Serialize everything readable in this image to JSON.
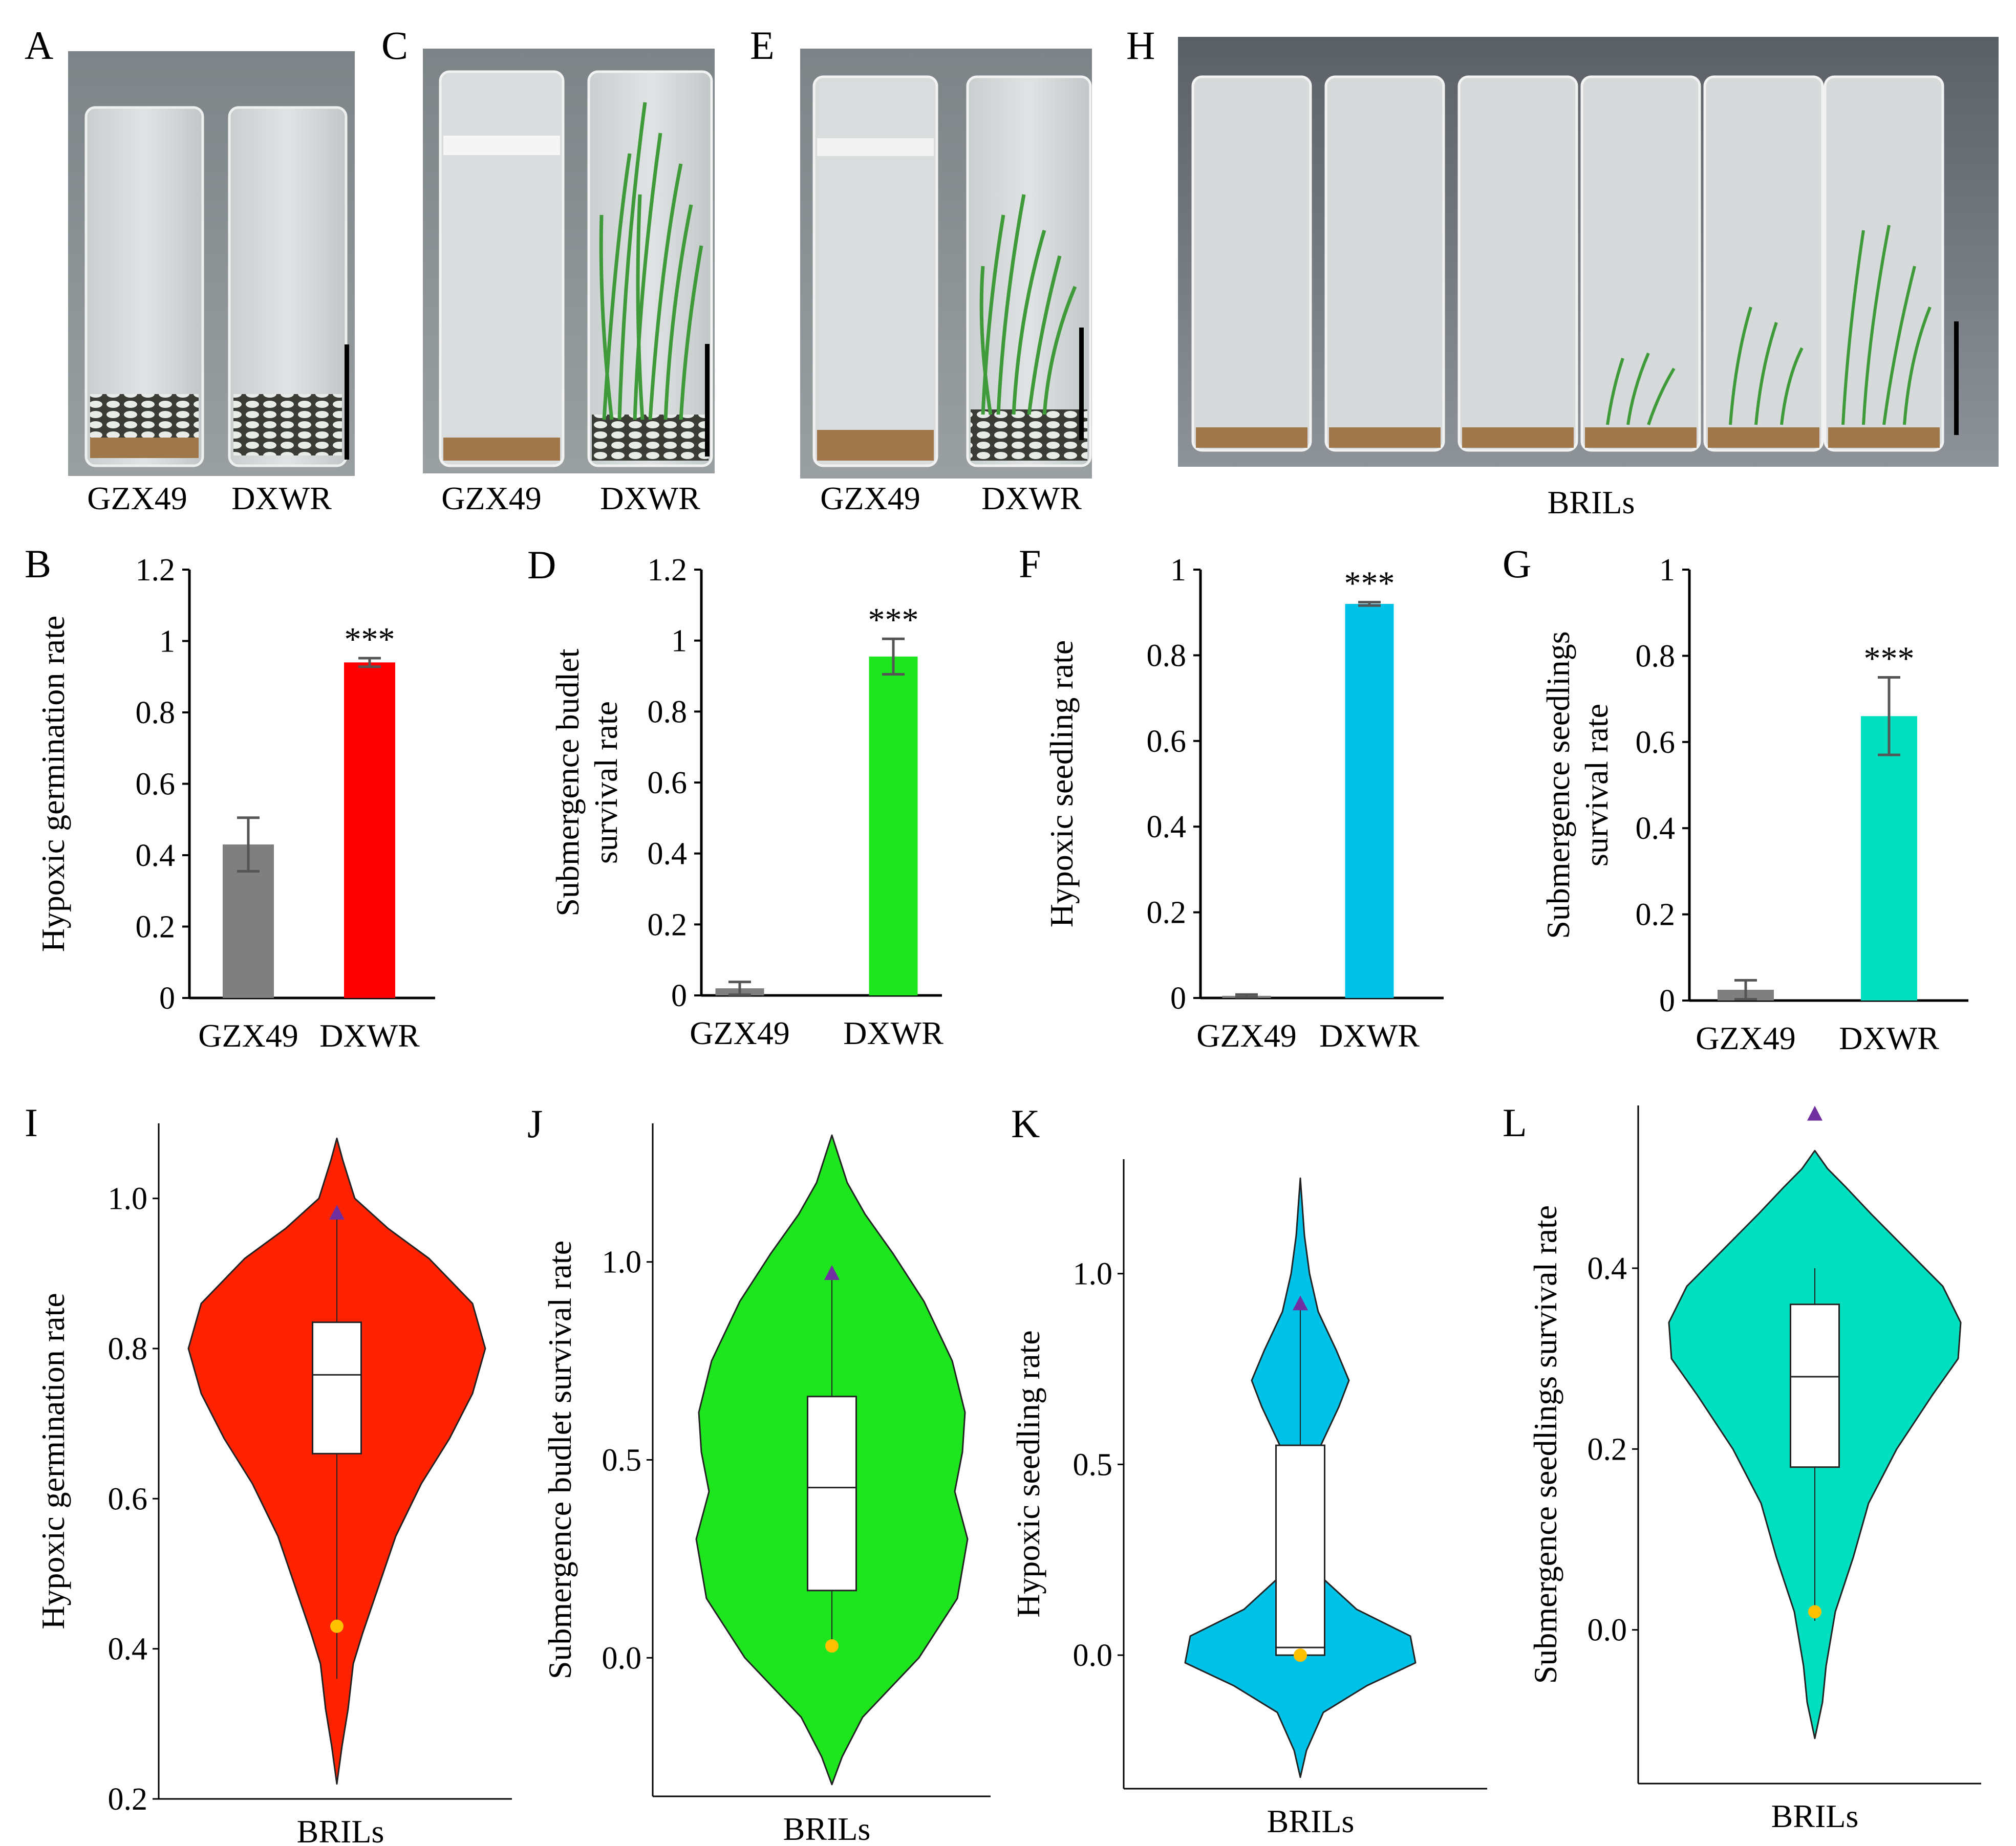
{
  "panel_letters": [
    "A",
    "C",
    "E",
    "H",
    "B",
    "D",
    "F",
    "G",
    "I",
    "J",
    "K",
    "L"
  ],
  "photos": [
    {
      "letter": "A",
      "labels": [
        "GZX49",
        "DXWR"
      ]
    },
    {
      "letter": "C",
      "labels": [
        "GZX49",
        "DXWR"
      ]
    },
    {
      "letter": "E",
      "labels": [
        "GZX49",
        "DXWR"
      ]
    },
    {
      "letter": "H",
      "labels": [
        "BRILs"
      ]
    }
  ],
  "colors": {
    "gray": "#7f7f7f",
    "red": "#ff0000",
    "green": "#1ee61e",
    "blue": "#00c2e8",
    "teal": "#00e0c0",
    "violin_red": "#ff2200",
    "triangle": "#7030a0",
    "dot": "#ffc000"
  },
  "chart_data": [
    {
      "panel": "B",
      "type": "bar",
      "categories": [
        "GZX49",
        "DXWR"
      ],
      "values": [
        0.43,
        0.94
      ],
      "errors": [
        0.075,
        0.012
      ],
      "ylabel": "Hypoxic germination rate",
      "ylim": [
        0,
        1.2
      ],
      "yticks": [
        "0",
        "0.2",
        "0.4",
        "0.6",
        "0.8",
        "1",
        "1.2"
      ],
      "significance": "***"
    },
    {
      "panel": "D",
      "type": "bar",
      "categories": [
        "GZX49",
        "DXWR"
      ],
      "values": [
        0.02,
        0.955
      ],
      "errors": [
        0.018,
        0.05
      ],
      "ylabel": "Submergence budlet survival rate",
      "ylim": [
        0,
        1.2
      ],
      "yticks": [
        "0",
        "0.2",
        "0.4",
        "0.6",
        "0.8",
        "1",
        "1.2"
      ],
      "significance": "***"
    },
    {
      "panel": "F",
      "type": "bar",
      "categories": [
        "GZX49",
        "DXWR"
      ],
      "values": [
        0.005,
        0.92
      ],
      "errors": [
        0.003,
        0.004
      ],
      "ylabel": "Hypoxic seedling rate",
      "ylim": [
        0,
        1
      ],
      "yticks": [
        "0",
        "0.2",
        "0.4",
        "0.6",
        "0.8",
        "1"
      ],
      "significance": "***"
    },
    {
      "panel": "G",
      "type": "bar",
      "categories": [
        "GZX49",
        "DXWR"
      ],
      "values": [
        0.025,
        0.66
      ],
      "errors": [
        0.022,
        0.09
      ],
      "ylabel": "Submergence seedlings survival rate",
      "ylim": [
        0,
        1
      ],
      "yticks": [
        "0",
        "0.2",
        "0.4",
        "0.6",
        "0.8",
        "1"
      ],
      "significance": "***"
    },
    {
      "panel": "I",
      "type": "violin",
      "category": "BRILs",
      "ylabel": "Hypoxic germination rate",
      "ylim": [
        0.2,
        1.1
      ],
      "yticks": [
        "0.2",
        "0.4",
        "0.6",
        "0.8",
        "1.0"
      ],
      "box": {
        "q1": 0.66,
        "median": 0.765,
        "q3": 0.835,
        "whisker_low": 0.36,
        "whisker_high": 0.98
      },
      "parent_DXWR": 0.98,
      "parent_GZX49": 0.43
    },
    {
      "panel": "J",
      "type": "violin",
      "category": "BRILs",
      "ylabel": "Submergence budlet survival rate",
      "ylim": [
        -0.35,
        1.35
      ],
      "yticks": [
        "0.0",
        "0.5",
        "1.0"
      ],
      "box": {
        "q1": 0.17,
        "median": 0.43,
        "q3": 0.66,
        "whisker_low": 0.03,
        "whisker_high": 0.97
      },
      "parent_DXWR": 0.97,
      "parent_GZX49": 0.03
    },
    {
      "panel": "K",
      "type": "violin",
      "category": "BRILs",
      "ylabel": "Hypoxic seedling rate",
      "ylim": [
        -0.35,
        1.3
      ],
      "yticks": [
        "0.0",
        "0.5",
        "1.0"
      ],
      "box": {
        "q1": 0.0,
        "median": 0.02,
        "q3": 0.55,
        "whisker_low": 0.0,
        "whisker_high": 0.92
      },
      "parent_DXWR": 0.92,
      "parent_GZX49": 0.0
    },
    {
      "panel": "L",
      "type": "violin",
      "category": "BRILs",
      "ylabel": "Submergence seedlings survival rate",
      "ylim": [
        -0.17,
        0.58
      ],
      "yticks": [
        "0.0",
        "0.2",
        "0.4"
      ],
      "box": {
        "q1": 0.18,
        "median": 0.28,
        "q3": 0.36,
        "whisker_low": 0.01,
        "whisker_high": 0.4
      },
      "parent_DXWR": 0.57,
      "parent_GZX49": 0.02
    }
  ]
}
